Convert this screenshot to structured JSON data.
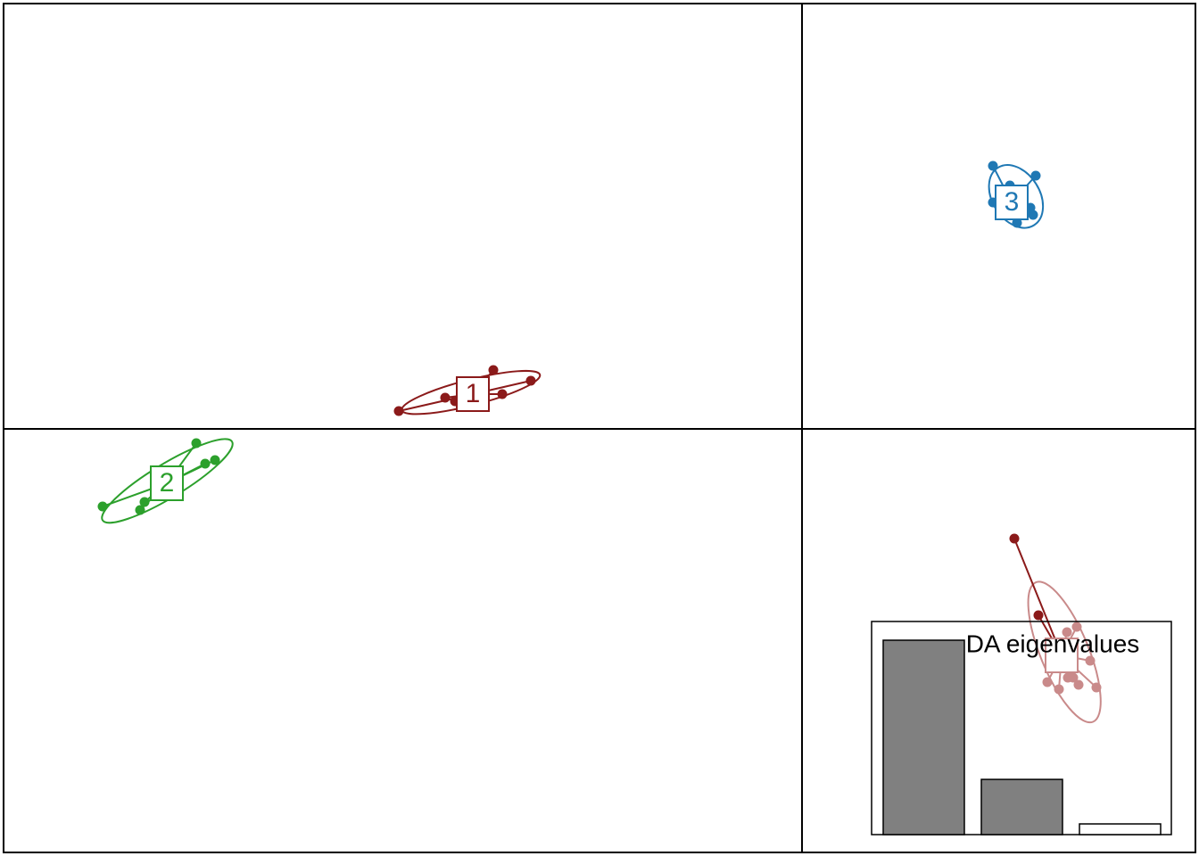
{
  "chart_data": {
    "type": "scatter",
    "xlim": [
      -8.95,
      4.41
    ],
    "ylim": [
      -4.75,
      4.77
    ],
    "series": [
      {
        "name": "1",
        "color": "#8b1a1a",
        "x": [
          -4.52,
          -4.0,
          -3.89,
          -3.46,
          -3.36,
          -3.04
        ],
        "y": [
          0.2,
          0.35,
          0.31,
          0.66,
          0.39,
          0.54
        ],
        "center_x": -3.69,
        "center_y": 0.39
      },
      {
        "name": "2",
        "color": "#2ca02c",
        "x": [
          -7.84,
          -7.42,
          -7.37,
          -6.79,
          -6.69,
          -6.58
        ],
        "y": [
          -0.87,
          -0.91,
          -0.82,
          -0.16,
          -0.39,
          -0.35
        ],
        "center_x": -7.12,
        "center_y": -0.61
      },
      {
        "name": "3",
        "color": "#1f78b4",
        "x": [
          2.14,
          2.62,
          2.14,
          2.41,
          2.59,
          2.56,
          2.33
        ],
        "y": [
          2.95,
          2.84,
          2.54,
          2.31,
          2.4,
          2.48,
          2.73
        ],
        "center_x": 2.35,
        "center_y": 2.54
      },
      {
        "color": "#c98a8a",
        "x": [
          2.38,
          2.65,
          2.75,
          2.88,
          2.98,
          3.04,
          3.1,
          3.23,
          3.3,
          2.97,
          3.08
        ],
        "y": [
          -1.23,
          -2.09,
          -2.84,
          -2.92,
          -2.79,
          -2.79,
          -2.87,
          -2.6,
          -2.9,
          -2.28,
          -2.22
        ],
        "point_colors": [
          "#8b1a1a",
          "#8b1a1a",
          "#c98a8a",
          "#c98a8a",
          "#c98a8a",
          "#c98a8a",
          "#c98a8a",
          "#c98a8a",
          "#c98a8a",
          "#c98a8a",
          "#c98a8a"
        ],
        "center_x": 2.91,
        "center_y": -2.54
      }
    ],
    "inset": {
      "type": "bar",
      "title": "DA eigenvalues",
      "values": [
        100,
        28.4,
        5.5
      ],
      "colors": [
        "#808080",
        "#808080",
        "#ffffff"
      ],
      "ylim": [
        0,
        100
      ]
    }
  }
}
